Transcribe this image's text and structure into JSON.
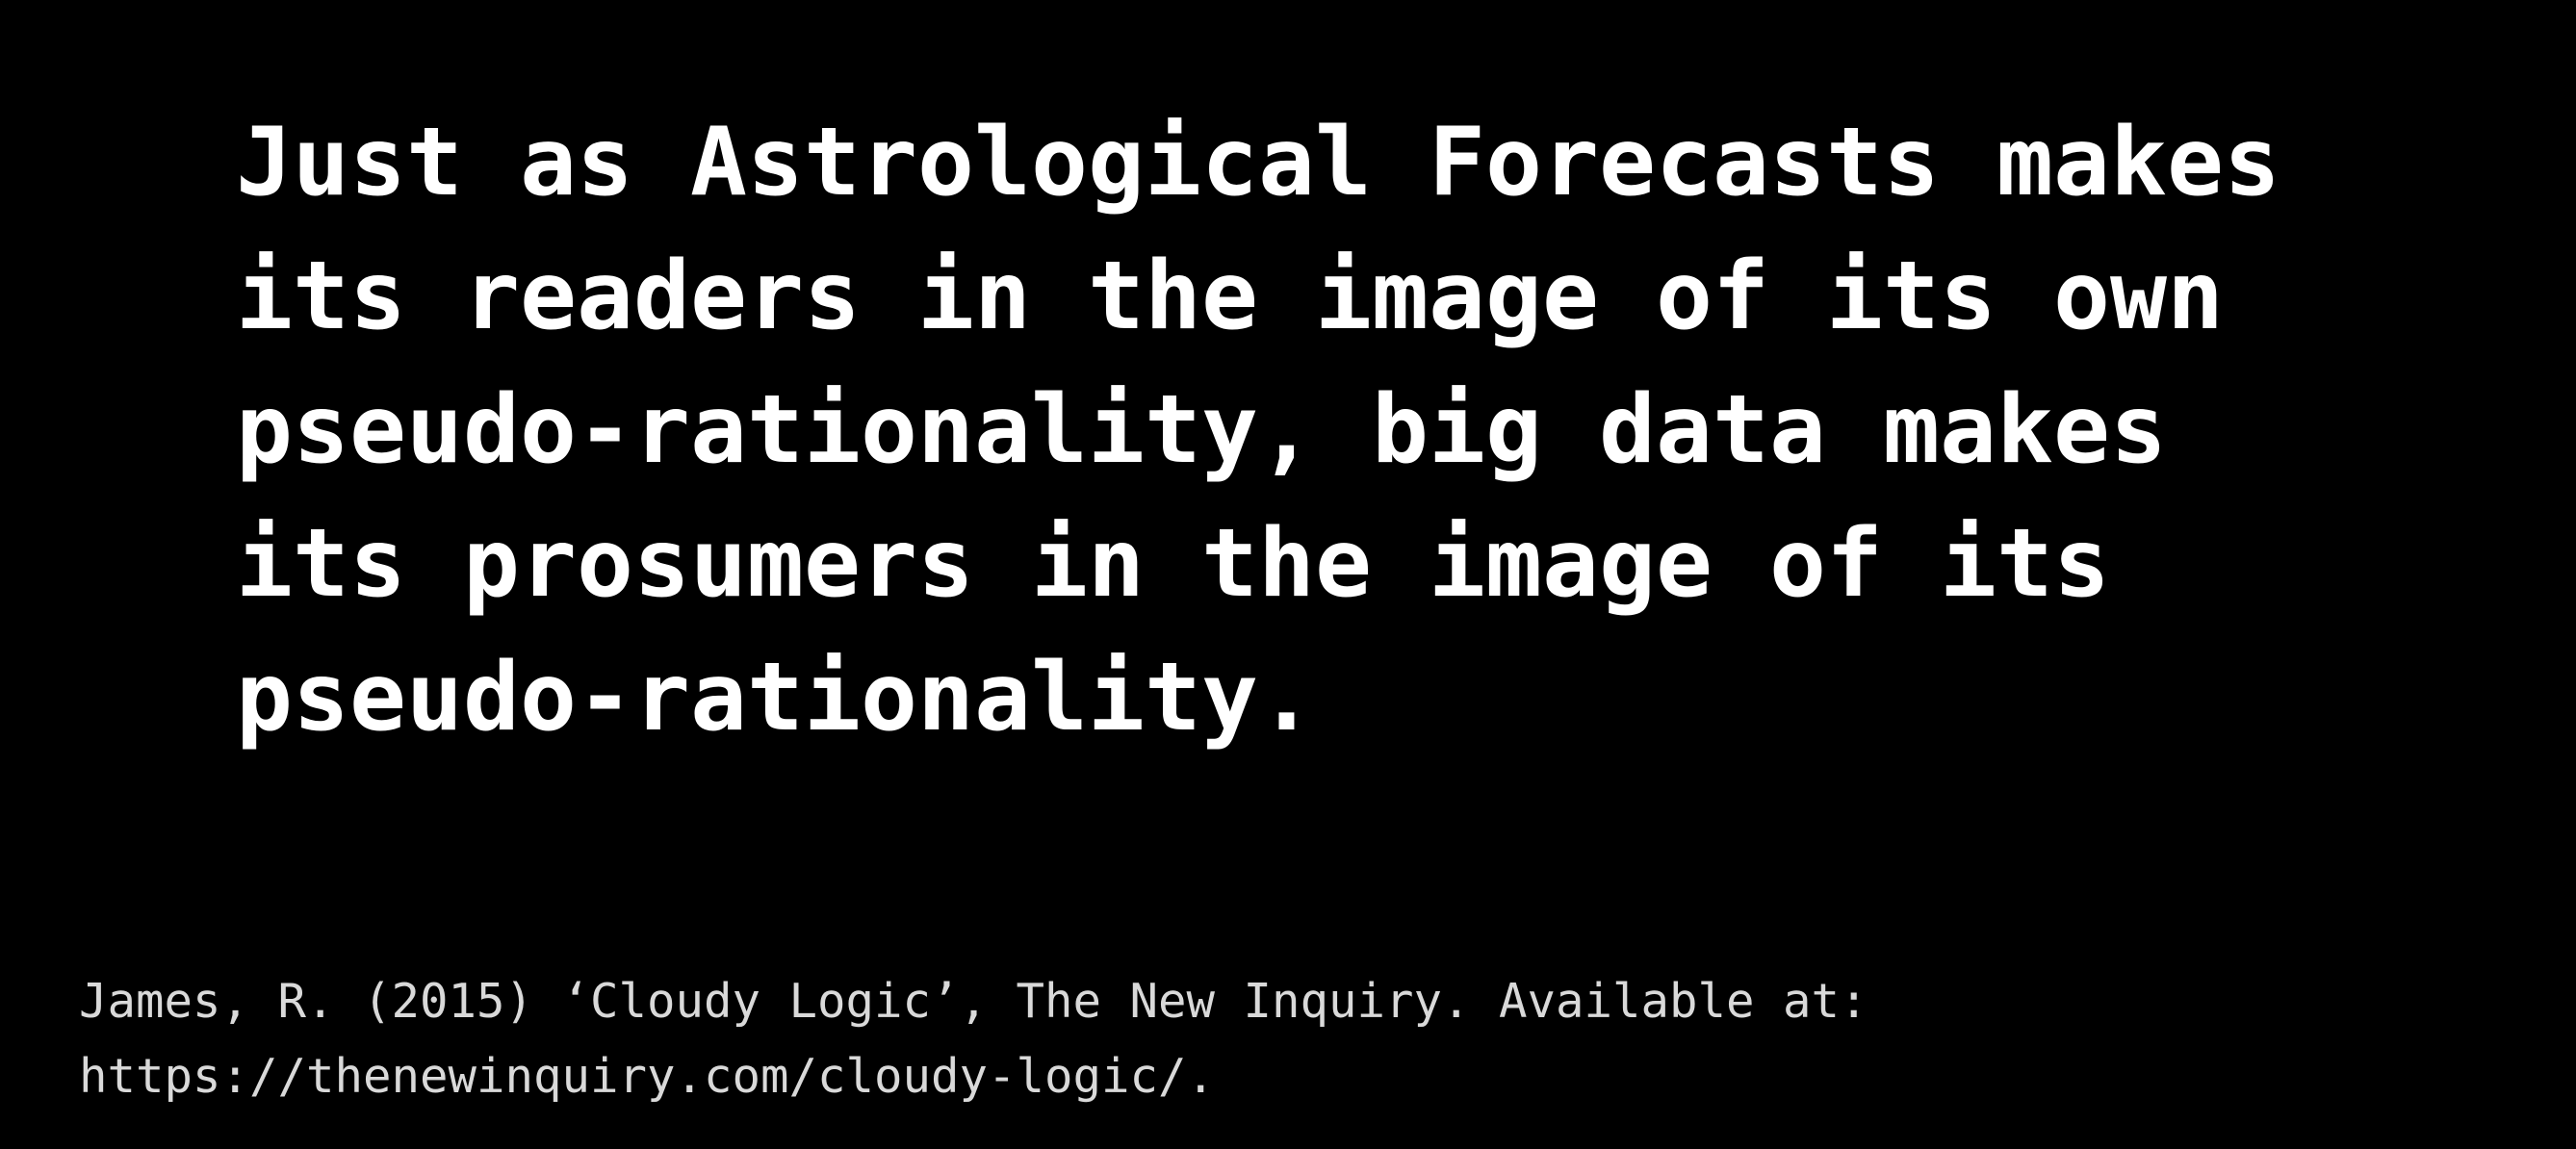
{
  "slide": {
    "quote_lines": [
      "Just as Astrological Forecasts makes",
      "its readers in the image of its own",
      "pseudo-rationality, big data makes",
      "its prosumers in the image of its",
      "pseudo-rationality."
    ],
    "citation_lines": [
      "James, R. (2015) ‘Cloudy Logic’, The New Inquiry. Available at:",
      "https://thenewinquiry.com/cloudy-logic/."
    ],
    "colors": {
      "background": "#000000",
      "quote_text": "#ffffff",
      "citation_text": "#d9d9d9"
    }
  }
}
